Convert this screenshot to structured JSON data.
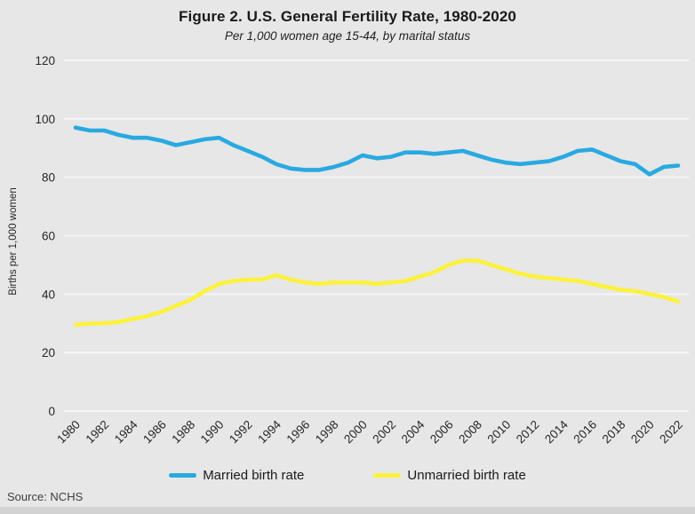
{
  "title": "Figure 2. U.S. General Fertility Rate, 1980-2020",
  "subtitle": "Per 1,000 women age 15-44, by marital status",
  "source_label": "Source: NCHS",
  "colors": {
    "married": "#29A9E1",
    "unmarried": "#FCF23C",
    "background": "#E7E7E7",
    "gridline": "#F6F6F6",
    "axis_text": "#262626",
    "bottom_bar": "#D2D2D2"
  },
  "chart_data": {
    "type": "line",
    "title": "Figure 2. U.S. General Fertility Rate, 1980-2020",
    "subtitle": "Per 1,000 women age 15-44, by marital status",
    "xlabel": "",
    "ylabel": "Births per 1,000 women",
    "ylim": [
      0,
      120
    ],
    "y_ticks": [
      0,
      20,
      40,
      60,
      80,
      100,
      120
    ],
    "x_ticks": [
      1980,
      1982,
      1984,
      1986,
      1988,
      1990,
      1992,
      1994,
      1996,
      1998,
      2000,
      2002,
      2004,
      2006,
      2008,
      2010,
      2012,
      2014,
      2016,
      2018,
      2020,
      2022
    ],
    "grid": true,
    "legend_position": "bottom",
    "x": [
      1980,
      1981,
      1982,
      1983,
      1984,
      1985,
      1986,
      1987,
      1988,
      1989,
      1990,
      1991,
      1992,
      1993,
      1994,
      1995,
      1996,
      1997,
      1998,
      1999,
      2000,
      2001,
      2002,
      2003,
      2004,
      2005,
      2006,
      2007,
      2008,
      2009,
      2010,
      2011,
      2012,
      2013,
      2014,
      2015,
      2016,
      2017,
      2018,
      2019,
      2020,
      2021,
      2022
    ],
    "series": [
      {
        "name": "Married birth rate",
        "color": "#29A9E1",
        "values": [
          97,
          96,
          96,
          94.5,
          93.5,
          93.5,
          92.5,
          91,
          92,
          93,
          93.5,
          91,
          89,
          87,
          84.5,
          83,
          82.5,
          82.5,
          83.5,
          85,
          87.5,
          86.5,
          87,
          88.5,
          88.5,
          88,
          88.5,
          89,
          87.5,
          86,
          85,
          84.5,
          85,
          85.5,
          87,
          89,
          89.5,
          87.5,
          85.5,
          84.5,
          81,
          83.5,
          84
        ]
      },
      {
        "name": "Unmarried birth rate",
        "color": "#FCF23C",
        "values": [
          29.5,
          30,
          30,
          30.5,
          31.5,
          32.5,
          34,
          36,
          38,
          41,
          43.5,
          44.5,
          45,
          45,
          46.5,
          45,
          44,
          43.5,
          44,
          44,
          44,
          43.5,
          44,
          44.5,
          46,
          47.5,
          50,
          51.5,
          51.5,
          50,
          48.5,
          47,
          46,
          45.5,
          45,
          44.5,
          43.5,
          42.5,
          41.5,
          41,
          40,
          39,
          37.5
        ]
      }
    ]
  }
}
